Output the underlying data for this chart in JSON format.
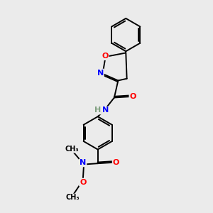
{
  "bg_color": "#ebebeb",
  "bond_color": "#000000",
  "N_color": "#0000ff",
  "O_color": "#ff0000",
  "H_color": "#7f9f7f",
  "lw": 1.4,
  "fs": 8.0,
  "fs_small": 7.0,
  "dbo_ring": 0.1,
  "dbo_chain": 0.06,
  "xlim": [
    0,
    10
  ],
  "ylim": [
    0,
    11
  ]
}
